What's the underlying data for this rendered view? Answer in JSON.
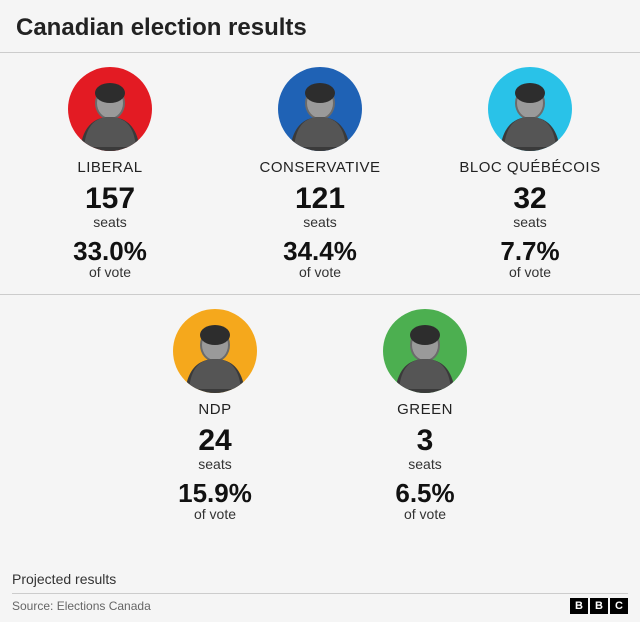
{
  "title": "Canadian election results",
  "seats_label": "seats",
  "vote_label": "of vote",
  "projected_label": "Projected results",
  "source_label": "Source: Elections Canada",
  "brand": "BBC",
  "avatar_size": 84,
  "title_fontsize": 24,
  "seats_fontsize": 30,
  "vote_fontsize": 26,
  "party_fontsize": 15,
  "background_color": "#f5f5f5",
  "divider_color": "#cccccc",
  "text_color": "#222222",
  "parties": [
    {
      "name": "LIBERAL",
      "seats": "157",
      "vote": "33.0%",
      "color": "#e31b23",
      "row": 0
    },
    {
      "name": "CONSERVATIVE",
      "seats": "121",
      "vote": "34.4%",
      "color": "#1f62b5",
      "row": 0
    },
    {
      "name": "BLOC QUÉBÉCOIS",
      "seats": "32",
      "vote": "7.7%",
      "color": "#29c2e8",
      "row": 0
    },
    {
      "name": "NDP",
      "seats": "24",
      "vote": "15.9%",
      "color": "#f5a81c",
      "row": 1
    },
    {
      "name": "GREEN",
      "seats": "3",
      "vote": "6.5%",
      "color": "#4caf50",
      "row": 1
    }
  ]
}
